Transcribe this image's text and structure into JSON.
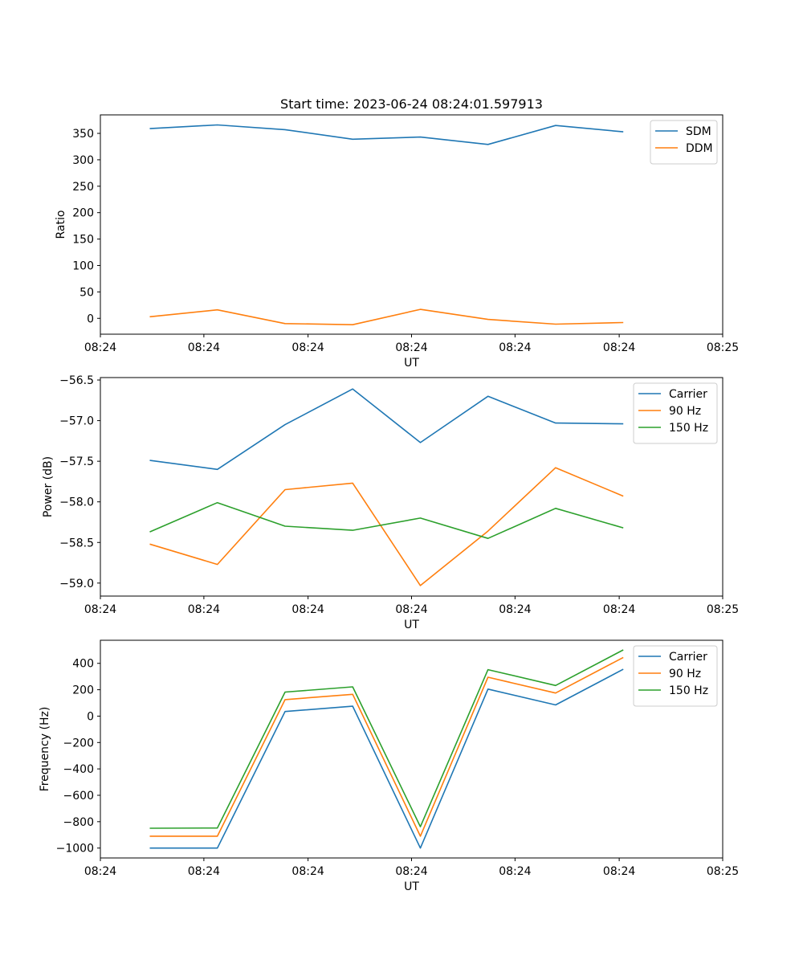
{
  "chart_data": [
    {
      "type": "line",
      "title": "Start time: 2023-06-24 08:24:01.597913",
      "xlabel": "UT",
      "ylabel": "Ratio",
      "grid": false,
      "legend_position": "top-right",
      "xlim": [
        0,
        9.2
      ],
      "ylim": [
        -30,
        385
      ],
      "x_ticks": [
        0.0,
        1.53,
        3.07,
        4.6,
        6.13,
        7.67,
        9.2
      ],
      "x_tick_labels": [
        "08:24",
        "08:24",
        "08:24",
        "08:24",
        "08:24",
        "08:24",
        "08:25"
      ],
      "y_ticks": [
        0,
        50,
        100,
        150,
        200,
        250,
        300,
        350
      ],
      "x": [
        0.73,
        1.73,
        2.73,
        3.73,
        4.73,
        5.73,
        6.73,
        7.73
      ],
      "series": [
        {
          "name": "SDM",
          "color": "#1f77b4",
          "values": [
            359,
            366,
            357,
            339,
            343,
            329,
            365,
            353
          ]
        },
        {
          "name": "DDM",
          "color": "#ff7f0e",
          "values": [
            3,
            16,
            -10,
            -12,
            17,
            -2,
            -11,
            -8
          ]
        }
      ]
    },
    {
      "type": "line",
      "xlabel": "UT",
      "ylabel": "Power (dB)",
      "grid": false,
      "legend_position": "top-right",
      "xlim": [
        0,
        9.2
      ],
      "ylim": [
        -59.16,
        -56.47
      ],
      "x_ticks": [
        0.0,
        1.53,
        3.07,
        4.6,
        6.13,
        7.67,
        9.2
      ],
      "x_tick_labels": [
        "08:24",
        "08:24",
        "08:24",
        "08:24",
        "08:24",
        "08:24",
        "08:25"
      ],
      "y_ticks": [
        -59.0,
        -58.5,
        -58.0,
        -57.5,
        -57.0,
        -56.5
      ],
      "y_tick_labels": [
        "−59.0",
        "−58.5",
        "−58.0",
        "−57.5",
        "−57.0",
        "−56.5"
      ],
      "x": [
        0.73,
        1.73,
        2.73,
        3.73,
        4.73,
        5.73,
        6.73,
        7.73
      ],
      "series": [
        {
          "name": "Carrier",
          "color": "#1f77b4",
          "values": [
            -57.49,
            -57.6,
            -57.05,
            -56.61,
            -57.27,
            -56.7,
            -57.03,
            -57.04
          ]
        },
        {
          "name": "90 Hz",
          "color": "#ff7f0e",
          "values": [
            -58.52,
            -58.77,
            -57.85,
            -57.77,
            -59.03,
            -58.36,
            -57.58,
            -57.93
          ]
        },
        {
          "name": "150 Hz",
          "color": "#2ca02c",
          "values": [
            -58.37,
            -58.01,
            -58.3,
            -58.35,
            -58.2,
            -58.45,
            -58.08,
            -58.32
          ]
        }
      ]
    },
    {
      "type": "line",
      "xlabel": "UT",
      "ylabel": "Frequency (Hz)",
      "grid": false,
      "legend_position": "top-right",
      "xlim": [
        0,
        9.2
      ],
      "ylim": [
        -1075,
        575
      ],
      "x_ticks": [
        0.0,
        1.53,
        3.07,
        4.6,
        6.13,
        7.67,
        9.2
      ],
      "x_tick_labels": [
        "08:24",
        "08:24",
        "08:24",
        "08:24",
        "08:24",
        "08:24",
        "08:25"
      ],
      "y_ticks": [
        -1000,
        -800,
        -600,
        -400,
        -200,
        0,
        200,
        400
      ],
      "y_tick_labels": [
        "−1000",
        "−800",
        "−600",
        "−400",
        "−200",
        "0",
        "200",
        "400"
      ],
      "x": [
        0.73,
        1.73,
        2.73,
        3.73,
        4.73,
        5.73,
        6.73,
        7.73
      ],
      "series": [
        {
          "name": "Carrier",
          "color": "#1f77b4",
          "values": [
            -1000,
            -1000,
            35,
            75,
            -1000,
            205,
            85,
            355
          ]
        },
        {
          "name": "90 Hz",
          "color": "#ff7f0e",
          "values": [
            -910,
            -910,
            125,
            165,
            -910,
            295,
            175,
            445
          ]
        },
        {
          "name": "150 Hz",
          "color": "#2ca02c",
          "values": [
            -850,
            -848,
            182,
            222,
            -838,
            352,
            232,
            502
          ]
        }
      ]
    }
  ]
}
